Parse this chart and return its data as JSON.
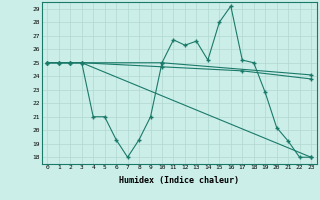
{
  "xlabel": "Humidex (Indice chaleur)",
  "bg_color": "#cceee8",
  "grid_color": "#b0d8d0",
  "line_color": "#1a7a6a",
  "xlim": [
    -0.5,
    23.5
  ],
  "ylim": [
    17.5,
    29.5
  ],
  "yticks": [
    18,
    19,
    20,
    21,
    22,
    23,
    24,
    25,
    26,
    27,
    28,
    29
  ],
  "xticks": [
    0,
    1,
    2,
    3,
    4,
    5,
    6,
    7,
    8,
    9,
    10,
    11,
    12,
    13,
    14,
    15,
    16,
    17,
    18,
    19,
    20,
    21,
    22,
    23
  ],
  "line1_x": [
    0,
    1,
    2,
    3,
    10,
    23
  ],
  "line1_y": [
    25.0,
    25.0,
    25.0,
    25.0,
    25.0,
    24.1
  ],
  "line2_x": [
    0,
    1,
    2,
    3,
    10,
    17,
    23
  ],
  "line2_y": [
    25.0,
    25.0,
    25.0,
    25.0,
    24.7,
    24.4,
    23.8
  ],
  "line3_x": [
    0,
    1,
    2,
    3,
    4,
    5,
    6,
    7,
    8,
    9,
    10,
    11,
    12,
    13,
    14,
    15,
    16,
    17,
    18,
    19,
    20,
    21,
    22,
    23
  ],
  "line3_y": [
    25.0,
    25.0,
    25.0,
    25.0,
    21.0,
    21.0,
    19.3,
    18.0,
    19.3,
    21.0,
    25.0,
    26.7,
    26.3,
    26.6,
    25.2,
    28.0,
    29.2,
    25.2,
    25.0,
    22.8,
    20.2,
    19.2,
    18.0,
    18.0
  ],
  "line4_x": [
    0,
    1,
    2,
    3,
    23
  ],
  "line4_y": [
    25.0,
    25.0,
    25.0,
    25.0,
    18.0
  ]
}
